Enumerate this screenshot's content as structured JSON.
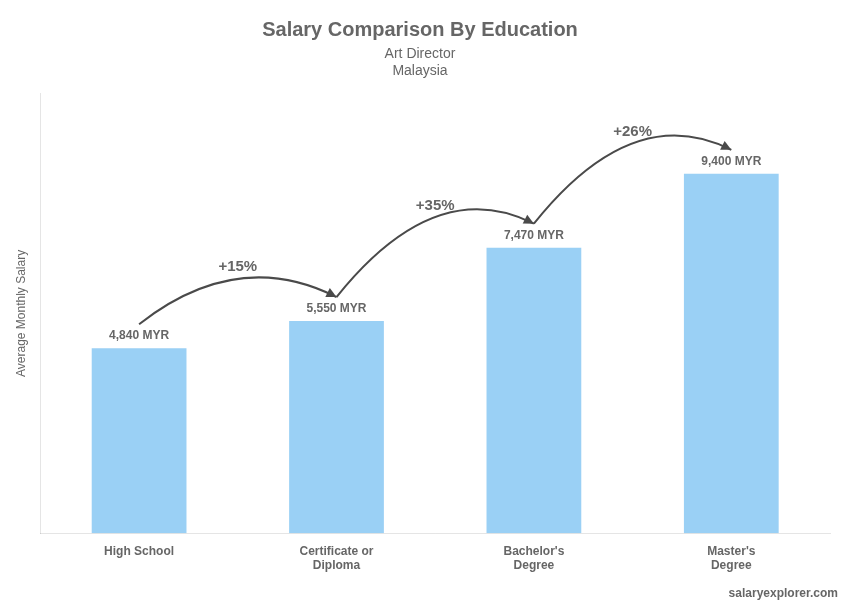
{
  "chart_data": {
    "type": "bar",
    "title": "Salary Comparison By Education",
    "subtitle": "Art Director",
    "country": "Malaysia",
    "watermark": [
      "salary",
      "explorer",
      ".com"
    ],
    "y_label": "Average Monthly Salary",
    "categories": [
      "High School",
      "Certificate or\nDiploma",
      "Bachelor's\nDegree",
      "Master's\nDegree"
    ],
    "values": [
      4840,
      5550,
      7470,
      9400
    ],
    "value_labels": [
      "4,840 MYR",
      "5,550 MYR",
      "7,470 MYR",
      "9,400 MYR"
    ],
    "data_labels": true,
    "annotations": [
      {
        "text": "+15%",
        "from": "High School",
        "to": "Certificate or\nDiploma"
      },
      {
        "text": "+35%",
        "from": "Certificate or\nDiploma",
        "to": "Bachelor's\nDegree"
      },
      {
        "text": "+26%",
        "from": "Bachelor's\nDegree",
        "to": "Master's\nDegree"
      }
    ],
    "ylim": [
      0,
      11500
    ],
    "grid": false,
    "tick_labels": "x"
  }
}
